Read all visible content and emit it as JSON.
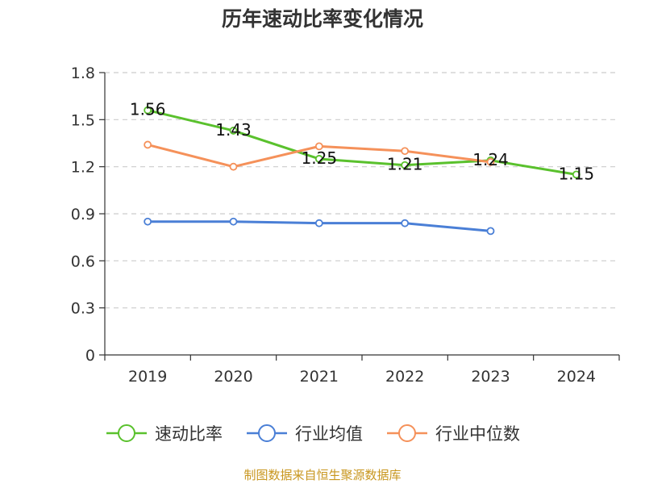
{
  "chart_data": {
    "type": "line",
    "title": "历年速动比率变化情况",
    "categories": [
      "2019",
      "2020",
      "2021",
      "2022",
      "2023",
      "2024"
    ],
    "ylim": [
      0,
      1.8
    ],
    "yticks": [
      "0",
      "0.3",
      "0.6",
      "0.9",
      "1.2",
      "1.5",
      "1.8"
    ],
    "grid": true,
    "legend_position": "bottom",
    "series": [
      {
        "name": "速动比率",
        "color": "#5ac12d",
        "values": [
          1.56,
          1.43,
          1.25,
          1.21,
          1.24,
          1.15
        ],
        "data_labels": [
          "1.56",
          "1.43",
          "1.25",
          "1.21",
          "1.24",
          "1.15"
        ]
      },
      {
        "name": "行业均值",
        "color": "#4a7fd6",
        "values": [
          0.85,
          0.85,
          0.84,
          0.84,
          0.79,
          null
        ]
      },
      {
        "name": "行业中位数",
        "color": "#f5915a",
        "values": [
          1.34,
          1.2,
          1.33,
          1.3,
          1.23,
          null
        ]
      }
    ]
  },
  "source": "制图数据来自恒生聚源数据库"
}
